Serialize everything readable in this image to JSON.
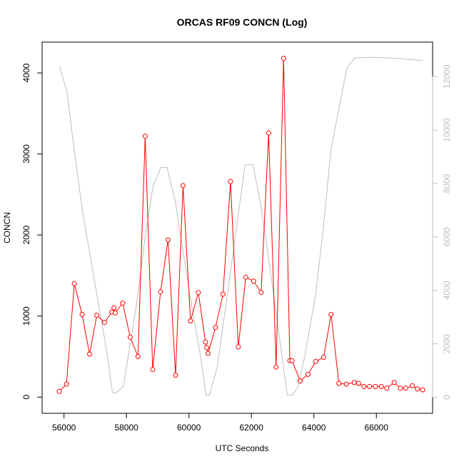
{
  "chart_data": {
    "type": "line",
    "title": "ORCAS RF09 CONCN (Log)",
    "xlabel": "UTC Seconds",
    "ylabel": "CONCN",
    "y2label": "",
    "xlim": [
      55300,
      67800
    ],
    "ylim": [
      -200,
      4380
    ],
    "y2lim": [
      -600,
      13290
    ],
    "x_ticks": [
      56000,
      58000,
      60000,
      62000,
      64000,
      66000
    ],
    "x_tick_labels": [
      "56000",
      "58000",
      "60000",
      "62000",
      "64000",
      "66000"
    ],
    "y_ticks": [
      0,
      1000,
      2000,
      3000,
      4000
    ],
    "y_tick_labels": [
      "0",
      "1000",
      "2000",
      "3000",
      "4000"
    ],
    "y2_ticks": [
      0,
      2000,
      4000,
      6000,
      8000,
      10000,
      12000
    ],
    "y2_tick_labels": [
      "0",
      "2000",
      "4000",
      "6000",
      "8000",
      "10000",
      "12000"
    ],
    "grid": false,
    "series": [
      {
        "axis": "left",
        "color": "#ff0000",
        "style": "line+open-circles",
        "x": [
          55850,
          56080,
          56330,
          56580,
          56820,
          57050,
          57300,
          57530,
          57600,
          57640,
          57880,
          58120,
          58370,
          58600,
          58840,
          59090,
          59330,
          59570,
          59810,
          60050,
          60300,
          60530,
          60570,
          60610,
          60850,
          61090,
          61330,
          61580,
          61820,
          62070,
          62310,
          62550,
          62790,
          63030,
          63230,
          63300,
          63560,
          63810,
          64060,
          64310,
          64550,
          64800,
          65040,
          65290,
          65430,
          65600,
          65780,
          65970,
          66160,
          66330,
          66570,
          66770,
          66940,
          67150,
          67310,
          67480
        ],
        "values": [
          70,
          160,
          1400,
          1020,
          530,
          1010,
          920,
          1050,
          1100,
          1040,
          1160,
          740,
          500,
          3220,
          340,
          1300,
          1940,
          270,
          2610,
          940,
          1290,
          680,
          610,
          540,
          860,
          1270,
          2660,
          620,
          1480,
          1430,
          1290,
          3260,
          370,
          4180,
          450,
          450,
          200,
          280,
          440,
          490,
          1020,
          170,
          160,
          180,
          170,
          130,
          130,
          130,
          130,
          110,
          180,
          110,
          110,
          140,
          100,
          90
        ]
      },
      {
        "axis": "right",
        "color": "#bebebe",
        "style": "line",
        "x": [
          55850,
          56100,
          56300,
          56600,
          57000,
          57400,
          57550,
          57650,
          57900,
          58300,
          58600,
          58850,
          59100,
          59300,
          59550,
          59900,
          60150,
          60350,
          60550,
          60650,
          60900,
          61250,
          61550,
          61800,
          62050,
          62300,
          62600,
          62900,
          63150,
          63300,
          63500,
          63700,
          64050,
          64300,
          64550,
          64800,
          65050,
          65300,
          65800,
          66200,
          66700,
          67000,
          67500
        ],
        "values": [
          12400,
          11400,
          9500,
          6900,
          4200,
          1500,
          180,
          150,
          400,
          3300,
          6000,
          7900,
          8600,
          8600,
          7400,
          4800,
          3000,
          1700,
          80,
          70,
          1100,
          4000,
          6600,
          8700,
          8700,
          7200,
          4800,
          2200,
          80,
          70,
          400,
          1500,
          3800,
          6300,
          9300,
          10800,
          12300,
          12700,
          12720,
          12710,
          12680,
          12650,
          12600
        ]
      }
    ]
  }
}
